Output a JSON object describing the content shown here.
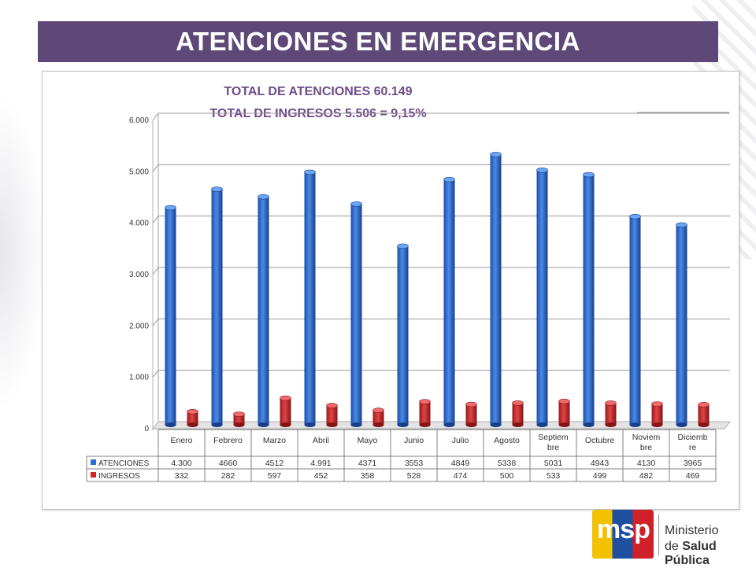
{
  "header": {
    "title": "ATENCIONES EN EMERGENCIA"
  },
  "logo": {
    "mark": "msp",
    "line1": "Ministerio",
    "line2_prefix": "de ",
    "line2_bold": "Salud Pública"
  },
  "chart_data": {
    "type": "bar",
    "title": "TOTAL DE ATENCIONES 60.149",
    "subtitle": "TOTAL DE INGRESOS 5.506 = 9,15%",
    "xlabel": "",
    "ylabel": "",
    "ylim": [
      0,
      6000
    ],
    "yticks": [
      0,
      1000,
      2000,
      3000,
      4000,
      5000,
      6000
    ],
    "ytick_labels": [
      "0",
      "1.000",
      "2.000",
      "3.000",
      "4.000",
      "5.000",
      "6.000"
    ],
    "grid": true,
    "categories": [
      "Enero",
      "Febrero",
      "Marzo",
      "Abril",
      "Mayo",
      "Junio",
      "Julio",
      "Agosto",
      "Septiembre",
      "Octubre",
      "Noviembre",
      "Diciembre"
    ],
    "category_lines": [
      [
        "Enero"
      ],
      [
        "Febrero"
      ],
      [
        "Marzo"
      ],
      [
        "Abril"
      ],
      [
        "Mayo"
      ],
      [
        "Junio"
      ],
      [
        "Julio"
      ],
      [
        "Agosto"
      ],
      [
        "Septiem",
        "bre"
      ],
      [
        "Octubre"
      ],
      [
        "Noviem",
        "bre"
      ],
      [
        "Diciemb",
        "re"
      ]
    ],
    "series": [
      {
        "name": "ATENCIONES",
        "color": "#2f6fd0",
        "values": [
          4300,
          4660,
          4512,
          4991,
          4371,
          3553,
          4849,
          5338,
          5031,
          4943,
          4130,
          3965
        ],
        "labels": [
          "4.300",
          "4660",
          "4512",
          "4.991",
          "4371",
          "3553",
          "4849",
          "5338",
          "5031",
          "4943",
          "4130",
          "3965"
        ]
      },
      {
        "name": "INGRESOS",
        "color": "#c8282a",
        "values": [
          332,
          282,
          597,
          452,
          358,
          528,
          474,
          500,
          533,
          499,
          482,
          469
        ],
        "labels": [
          "332",
          "282",
          "597",
          "452",
          "358",
          "528",
          "474",
          "500",
          "533",
          "499",
          "482",
          "469"
        ]
      }
    ],
    "legend": "data-table-bottom"
  }
}
